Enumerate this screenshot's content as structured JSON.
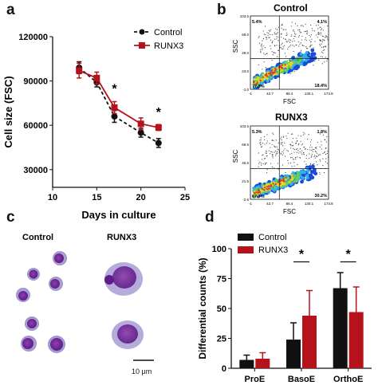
{
  "panels": {
    "a": "a",
    "b": "b",
    "c": "c",
    "d": "d"
  },
  "panel_a": {
    "chart_data": {
      "type": "line",
      "xlabel": "Days in culture",
      "ylabel": "Cell size (FSC)",
      "xlim": [
        10,
        25
      ],
      "ylim": [
        18000,
        120000
      ],
      "xticks": [
        "10",
        "15",
        "20",
        "25"
      ],
      "yticks": [
        "30000",
        "60000",
        "90000",
        "120000"
      ],
      "ytick_values": [
        30000,
        60000,
        90000,
        120000
      ],
      "xtick_values": [
        10,
        15,
        20,
        25
      ],
      "legend_position": "top-right",
      "series": [
        {
          "name": "Control",
          "color": "#111111",
          "dashed": true,
          "x": [
            13,
            15,
            17,
            20,
            22
          ],
          "y": [
            99000,
            89000,
            66000,
            55000,
            48000
          ],
          "err": [
            4000,
            3000,
            4000,
            3000,
            3000
          ]
        },
        {
          "name": "RUNX3",
          "color": "#b5121b",
          "dashed": false,
          "x": [
            13,
            15,
            17,
            20,
            22
          ],
          "y": [
            97000,
            92000,
            72000,
            61000,
            58500
          ],
          "err": [
            5000,
            4000,
            4000,
            4000,
            2000
          ]
        }
      ],
      "annotations": [
        {
          "text": "*",
          "x": 17,
          "y": 82000
        },
        {
          "text": "*",
          "x": 22,
          "y": 66000
        }
      ]
    }
  },
  "panel_b": {
    "plots": [
      {
        "title": "Control",
        "q_tl": "5.4%",
        "q_tr": "4.1%",
        "q_bl": "77.3%",
        "q_br": "18.4%",
        "yticks": [
          "103.5",
          "69.0",
          "49.0",
          "23.0",
          "-1.0"
        ],
        "xticks": [
          "-1",
          "42.7",
          "86.4",
          "130.1",
          "173.8"
        ],
        "xlabel": "FSC",
        "ylabel": "SSC"
      },
      {
        "title": "RUNX3",
        "q_tl": "5.3%",
        "q_tr": "1.8%",
        "q_bl": "67.7%",
        "q_br": "30.2%",
        "yticks": [
          "103.5",
          "69.6",
          "45.6",
          "21.5",
          "-2.5"
        ],
        "xticks": [
          "-1",
          "42.7",
          "86.4",
          "130.1",
          "173.8"
        ],
        "xlabel": "FSC",
        "ylabel": "SSC"
      }
    ]
  },
  "panel_c": {
    "control_label": "Control",
    "runx3_label": "RUNX3",
    "scale_label": "10 µm"
  },
  "panel_d": {
    "chart_data": {
      "type": "bar",
      "ylabel": "Differential counts (%)",
      "categories": [
        "ProE",
        "BasoE",
        "OrthoE"
      ],
      "ylim": [
        0,
        100
      ],
      "yticks": [
        "0",
        "25",
        "50",
        "75",
        "100"
      ],
      "ytick_values": [
        0,
        25,
        50,
        75,
        100
      ],
      "legend_position": "top-left",
      "series": [
        {
          "name": "Control",
          "color": "#111111",
          "values": [
            7,
            24,
            67
          ],
          "err": [
            4,
            14,
            13
          ]
        },
        {
          "name": "RUNX3",
          "color": "#b5121b",
          "values": [
            8,
            44,
            47
          ],
          "err": [
            5,
            21,
            21
          ]
        }
      ],
      "annotations": [
        {
          "text": "*",
          "category": "BasoE"
        },
        {
          "text": "*",
          "category": "OrthoE"
        }
      ]
    }
  }
}
